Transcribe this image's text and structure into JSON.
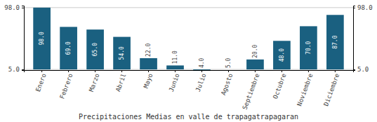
{
  "chart_data": {
    "type": "bar",
    "title": "Precipitaciones Medias en valle de trapagatrapagaran",
    "categories": [
      "Enero",
      "Febrero",
      "Marzo",
      "Abril",
      "Mayo",
      "Junio",
      "Julio",
      "Agosto",
      "Septiembre",
      "Octubre",
      "Noviembre",
      "Diciembre"
    ],
    "values": [
      98.0,
      69.0,
      65.0,
      54.0,
      22.0,
      11.0,
      4.0,
      5.0,
      20.0,
      48.0,
      70.0,
      87.0
    ],
    "value_labels": [
      "98.0",
      "69.0",
      "65.0",
      "54.0",
      "22.0",
      "11.0",
      "4.0",
      "5.0",
      "20.0",
      "48.0",
      "70.0",
      "87.0"
    ],
    "color": "#1a6080",
    "ylim": [
      4.0,
      101.0
    ],
    "yticks": [
      {
        "value": 5.0,
        "label": "5.0"
      },
      {
        "value": 98.0,
        "label": "98.0"
      }
    ],
    "grid": true,
    "data_labels": true
  }
}
